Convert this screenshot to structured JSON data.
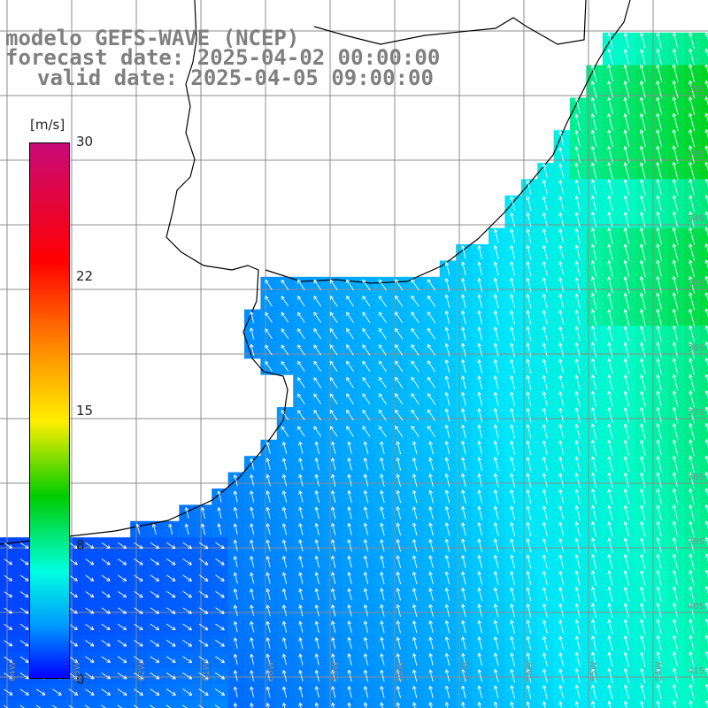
{
  "titles": {
    "line1": "modelo GEFS-WAVE (NCEP)",
    "line2": "forecast date: 2025-04-02 00:00:00",
    "line3": "valid date: 2025-04-05 09:00:00"
  },
  "colorbar": {
    "unit": "[m/s]",
    "ticks": [
      "30",
      "22",
      "15",
      "8",
      "0"
    ],
    "tick_values": [
      30,
      22,
      15,
      8,
      0
    ],
    "range": [
      0,
      30
    ],
    "colors": [
      "#0000ff",
      "#009cff",
      "#00ffe0",
      "#00cc00",
      "#ffee00",
      "#ff8800",
      "#ff0000",
      "#c80a78"
    ]
  },
  "map": {
    "land_color": "#ffffff",
    "coast_color": "#000000",
    "grid_color": "#8c8c8c",
    "arrow_color": "#ffffff",
    "lat_labels": [
      "32S",
      "33S",
      "34S",
      "35S",
      "36S",
      "37S",
      "38S",
      "39S",
      "40S",
      "41S"
    ],
    "lon_labels": [
      "64W",
      "63W",
      "62W",
      "61W",
      "60W",
      "59W",
      "58W",
      "57W",
      "56W",
      "55W",
      "54W"
    ]
  }
}
